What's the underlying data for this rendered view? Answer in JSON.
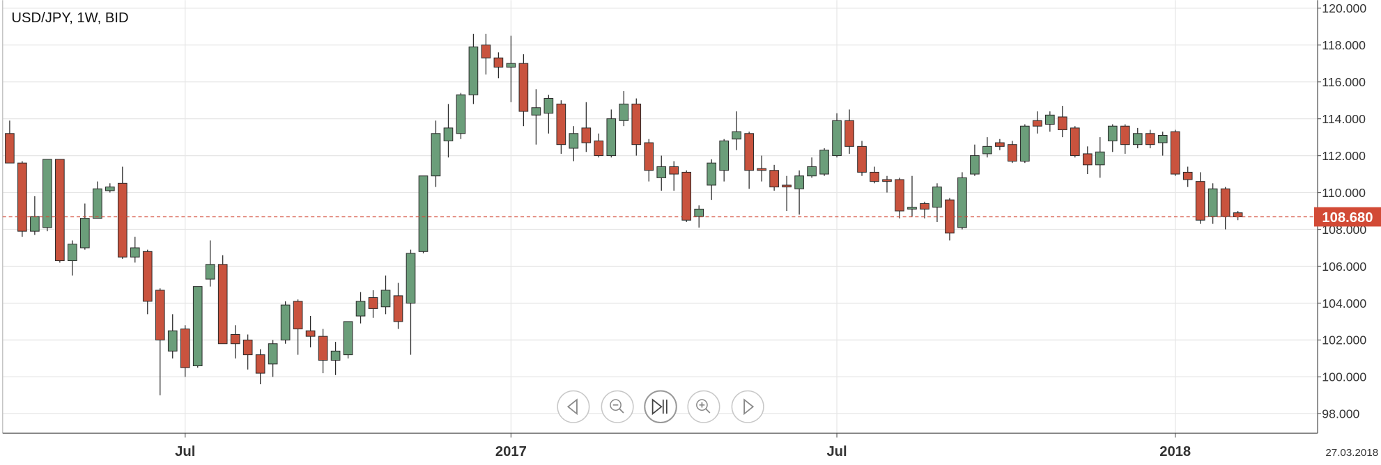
{
  "chart_data": {
    "type": "candlestick",
    "title": "USD/JPY, 1W, BID",
    "categories": [
      null,
      null,
      null,
      null,
      null,
      null,
      null,
      null,
      null,
      null,
      null,
      null,
      null,
      null,
      "Jul",
      null,
      null,
      null,
      null,
      null,
      null,
      null,
      null,
      null,
      null,
      null,
      null,
      null,
      null,
      null,
      null,
      null,
      null,
      null,
      null,
      null,
      null,
      null,
      null,
      null,
      "2017",
      null,
      null,
      null,
      null,
      null,
      null,
      null,
      null,
      null,
      null,
      null,
      null,
      null,
      null,
      null,
      null,
      null,
      null,
      null,
      null,
      null,
      null,
      null,
      null,
      null,
      "Jul",
      null,
      null,
      null,
      null,
      null,
      null,
      null,
      null,
      null,
      null,
      null,
      null,
      null,
      null,
      null,
      null,
      null,
      null,
      null,
      null,
      null,
      null,
      null,
      null,
      null,
      null,
      "2018",
      null,
      null,
      null,
      null,
      null
    ],
    "open": [
      113.2,
      111.6,
      107.9,
      108.1,
      111.8,
      106.3,
      107.0,
      108.6,
      110.1,
      110.5,
      106.5,
      106.8,
      104.7,
      101.4,
      102.6,
      100.6,
      105.3,
      106.1,
      102.3,
      102.0,
      101.2,
      100.7,
      102.0,
      104.1,
      102.5,
      102.2,
      100.9,
      101.2,
      103.3,
      104.3,
      103.8,
      104.4,
      104.0,
      106.8,
      110.9,
      112.8,
      113.2,
      115.3,
      118.0,
      117.3,
      116.8,
      117.0,
      114.2,
      114.3,
      114.8,
      112.4,
      113.5,
      112.8,
      112.0,
      113.9,
      114.8,
      112.7,
      110.8,
      111.4,
      111.1,
      108.7,
      110.4,
      111.2,
      112.9,
      113.2,
      111.3,
      111.2,
      110.4,
      110.2,
      110.9,
      111.0,
      112.0,
      113.9,
      112.5,
      111.1,
      110.7,
      110.7,
      109.1,
      109.4,
      109.2,
      109.6,
      108.1,
      111.0,
      112.1,
      112.7,
      112.6,
      111.7,
      113.9,
      113.7,
      114.1,
      113.5,
      112.1,
      111.5,
      112.8,
      113.6,
      112.6,
      113.2,
      112.7,
      113.3,
      111.1,
      110.6,
      108.7,
      110.2,
      108.9
    ],
    "high": [
      113.9,
      111.7,
      109.8,
      111.8,
      111.8,
      107.4,
      109.4,
      110.6,
      110.5,
      111.4,
      107.6,
      106.9,
      104.8,
      103.4,
      102.8,
      104.9,
      107.4,
      106.6,
      102.8,
      102.3,
      101.5,
      102.0,
      104.1,
      104.2,
      103.3,
      102.6,
      101.9,
      103.0,
      104.6,
      104.7,
      105.5,
      105.1,
      106.9,
      110.9,
      113.9,
      114.8,
      115.4,
      118.6,
      118.6,
      117.6,
      118.5,
      117.5,
      115.6,
      115.3,
      115.0,
      113.6,
      114.9,
      113.2,
      114.5,
      115.5,
      115.1,
      112.9,
      112.0,
      111.7,
      111.2,
      109.3,
      111.8,
      112.9,
      114.4,
      113.3,
      112.0,
      111.5,
      110.9,
      111.2,
      111.9,
      112.4,
      114.3,
      114.5,
      112.8,
      111.4,
      110.9,
      110.8,
      110.9,
      109.5,
      110.5,
      109.7,
      111.1,
      112.6,
      113.0,
      112.9,
      112.8,
      113.7,
      114.4,
      114.4,
      114.7,
      113.6,
      112.5,
      113.0,
      113.7,
      113.7,
      113.5,
      113.4,
      113.3,
      113.4,
      111.4,
      111.1,
      110.5,
      110.3,
      109.0
    ],
    "low": [
      111.6,
      107.6,
      107.7,
      107.9,
      106.2,
      105.5,
      106.9,
      108.6,
      110.0,
      106.4,
      106.2,
      103.4,
      99.0,
      101.0,
      100.0,
      100.5,
      104.9,
      101.8,
      101.0,
      100.4,
      99.6,
      100.0,
      101.8,
      101.2,
      101.6,
      100.2,
      100.1,
      101.0,
      102.9,
      103.2,
      103.4,
      102.6,
      101.2,
      106.7,
      110.3,
      111.9,
      112.9,
      114.8,
      116.4,
      116.2,
      114.9,
      113.6,
      112.6,
      113.2,
      112.1,
      111.7,
      112.2,
      111.9,
      111.9,
      113.6,
      112.0,
      110.6,
      110.1,
      110.1,
      108.4,
      108.1,
      109.6,
      110.6,
      112.3,
      110.2,
      110.6,
      110.1,
      109.0,
      108.8,
      110.8,
      110.9,
      111.9,
      112.1,
      110.9,
      110.5,
      110.0,
      108.6,
      108.7,
      108.6,
      108.4,
      107.4,
      108.0,
      110.9,
      111.9,
      112.3,
      111.6,
      111.6,
      113.2,
      113.3,
      113.0,
      111.9,
      111.0,
      110.8,
      112.2,
      112.1,
      112.4,
      112.4,
      112.0,
      110.9,
      110.3,
      108.3,
      108.3,
      108.0,
      108.5
    ],
    "close": [
      111.6,
      107.9,
      108.7,
      111.8,
      106.3,
      107.2,
      108.6,
      110.2,
      110.3,
      106.5,
      107.0,
      104.1,
      102.0,
      102.5,
      100.5,
      104.9,
      106.1,
      101.8,
      101.8,
      101.2,
      100.2,
      101.8,
      103.9,
      102.6,
      102.2,
      100.9,
      101.4,
      103.0,
      104.1,
      103.7,
      104.7,
      103.0,
      106.7,
      110.9,
      113.2,
      113.5,
      115.3,
      117.9,
      117.3,
      116.8,
      117.0,
      114.4,
      114.6,
      115.1,
      112.6,
      113.2,
      112.7,
      112.0,
      114.0,
      114.8,
      112.6,
      111.2,
      111.4,
      111.0,
      108.5,
      109.1,
      111.6,
      112.8,
      113.3,
      111.2,
      111.2,
      110.3,
      110.3,
      110.9,
      111.4,
      112.3,
      113.9,
      112.5,
      111.1,
      110.6,
      110.6,
      109.0,
      109.2,
      109.1,
      110.3,
      107.8,
      110.8,
      112.0,
      112.5,
      112.5,
      111.7,
      113.6,
      113.6,
      114.2,
      113.4,
      112.0,
      111.5,
      112.2,
      113.6,
      112.6,
      113.2,
      112.6,
      113.1,
      111.0,
      110.7,
      108.5,
      110.2,
      108.7,
      108.68
    ],
    "up_color": "#6b9e7a",
    "down_color": "#c9533e",
    "ylim": [
      96.95,
      120.43
    ],
    "yticks": [
      {
        "value": 98,
        "label": "98.000"
      },
      {
        "value": 100,
        "label": "100.000"
      },
      {
        "value": 102,
        "label": "102.000"
      },
      {
        "value": 104,
        "label": "104.000"
      },
      {
        "value": 106,
        "label": "106.000"
      },
      {
        "value": 108,
        "label": "108.000"
      },
      {
        "value": 110,
        "label": "110.000"
      },
      {
        "value": 112,
        "label": "112.000"
      },
      {
        "value": 114,
        "label": "114.000"
      },
      {
        "value": 116,
        "label": "116.000"
      },
      {
        "value": 118,
        "label": "118.000"
      },
      {
        "value": 120,
        "label": "120.000"
      }
    ],
    "grid": true,
    "last_price": {
      "value": 108.68,
      "label": "108.680",
      "color": "#d24a36"
    },
    "date_label": "27.03.2018"
  }
}
